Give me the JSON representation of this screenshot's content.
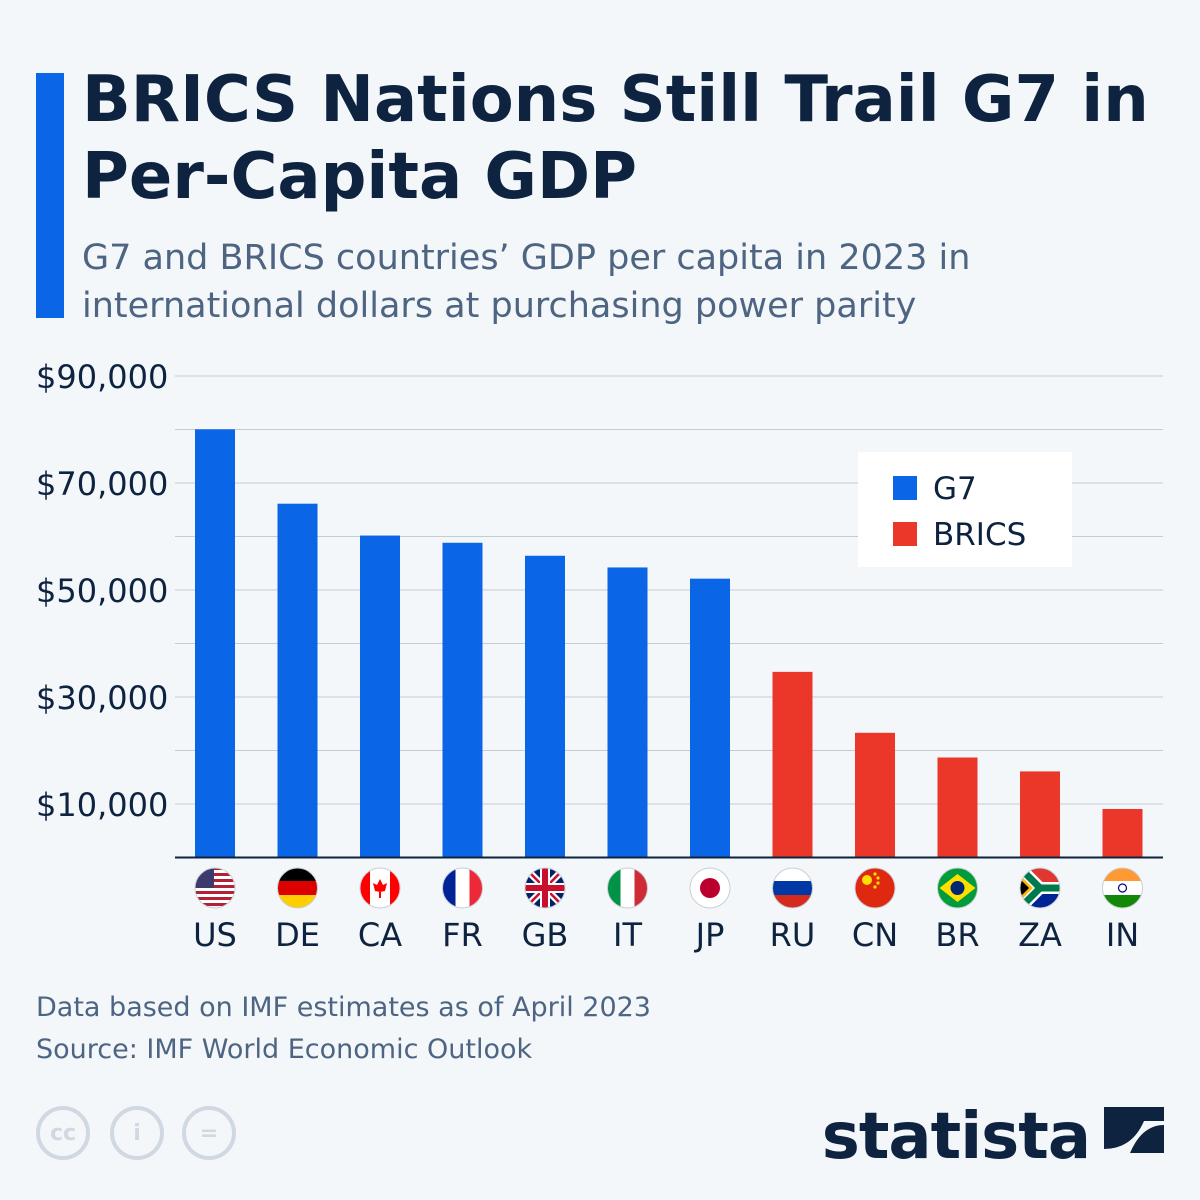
{
  "title": "BRICS Nations Still Trail G7 in Per-Capita GDP",
  "subtitle": "G7 and BRICS countries’ GDP per capita in 2023 in international dollars at purchasing power parity",
  "footer": {
    "note": "Data based on IMF estimates as of April 2023",
    "source": "Source: IMF World Economic Outlook",
    "logo": "statista",
    "license_icons": [
      "cc-icon",
      "attribution-icon",
      "no-derivatives-icon"
    ]
  },
  "chart_data": {
    "type": "bar",
    "categories": [
      "US",
      "DE",
      "CA",
      "FR",
      "GB",
      "IT",
      "JP",
      "RU",
      "CN",
      "BR",
      "ZA",
      "IN"
    ],
    "values": [
      80035,
      66132,
      60177,
      58828,
      56400,
      54216,
      52120,
      34700,
      23310,
      18690,
      16090,
      9070
    ],
    "groups": [
      "G7",
      "G7",
      "G7",
      "G7",
      "G7",
      "G7",
      "G7",
      "BRICS",
      "BRICS",
      "BRICS",
      "BRICS",
      "BRICS"
    ],
    "ylim": [
      0,
      90000
    ],
    "yticks": [
      10000,
      30000,
      50000,
      70000,
      90000
    ],
    "ytick_labels": [
      "$10,000",
      "$30,000",
      "$50,000",
      "$70,000",
      "$90,000"
    ],
    "grid_step": 10000,
    "grid": true,
    "legend": {
      "placement": "top-right",
      "entries": [
        {
          "name": "G7",
          "color": "#0a66e6"
        },
        {
          "name": "BRICS",
          "color": "#ea3729"
        }
      ]
    }
  }
}
